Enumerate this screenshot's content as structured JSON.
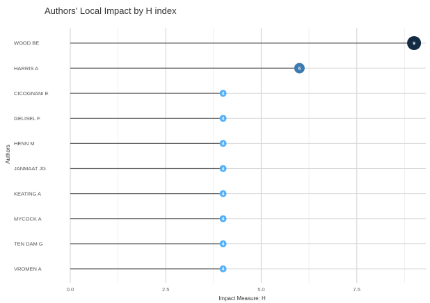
{
  "chart_data": {
    "type": "lollipop",
    "title": "Authors' Local Impact by H index",
    "xlabel": "Impact Measure: H",
    "ylabel": "Authors",
    "xlim": [
      0,
      9.2
    ],
    "xticks": [
      0,
      2.5,
      5,
      7.5
    ],
    "xtick_labels": [
      "0.0",
      "2.5",
      "5.0",
      "7.5"
    ],
    "grid": true,
    "categories": [
      "WOOD BE",
      "HARRIS A",
      "CICOGNANI E",
      "GELISEL F",
      "HENN M",
      "JANMAAT JG",
      "KEATING A",
      "MYCOCK A",
      "TEN DAM G",
      "VROMEN A"
    ],
    "values": [
      9,
      6,
      4,
      4,
      4,
      4,
      4,
      4,
      4,
      4
    ],
    "colors": {
      "high": "#132b43",
      "mid": "#336a98",
      "low": "#56b1f7",
      "stem": "#666666",
      "grid_major": "#d9d9d9",
      "grid_minor": "#efefef"
    }
  }
}
